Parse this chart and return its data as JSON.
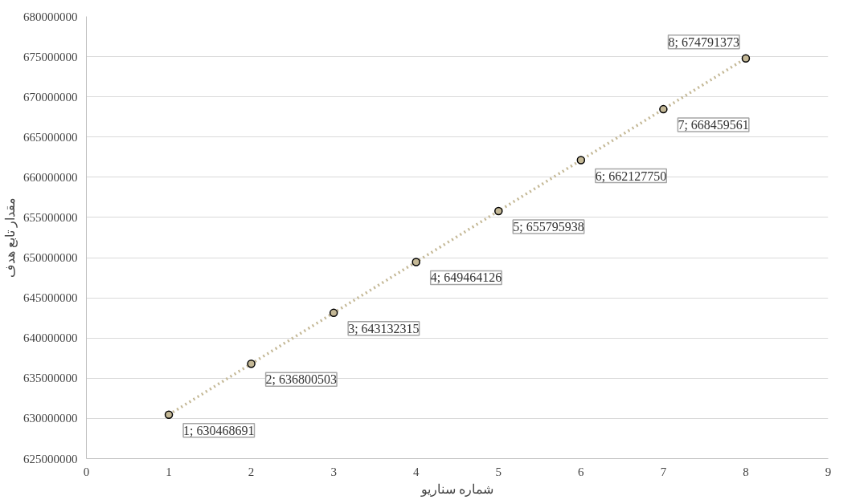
{
  "chart_data": {
    "type": "line",
    "xlabel": "شماره سناریو",
    "ylabel": "مقدار تابع هدف",
    "x": [
      1,
      2,
      3,
      4,
      5,
      6,
      7,
      8
    ],
    "series": [
      {
        "color": "#c4b896",
        "values": [
          630468691,
          636800503,
          643132315,
          649464126,
          655795938,
          662127750,
          668459561,
          674791373
        ],
        "value_labels": [
          "1; 630468691",
          "2; 636800503",
          "3; 643132315",
          "4; 649464126",
          "5; 655795938",
          "6; 662127750",
          "7; 668459561",
          "8; 674791373"
        ]
      }
    ],
    "xlim": [
      0,
      9
    ],
    "xticks": [
      0,
      1,
      2,
      3,
      4,
      5,
      6,
      7,
      8,
      9
    ],
    "ylim": [
      625000000,
      680000000
    ],
    "yticks": [
      625000000,
      630000000,
      635000000,
      640000000,
      645000000,
      650000000,
      655000000,
      660000000,
      665000000,
      670000000,
      675000000,
      680000000
    ],
    "grid": "y",
    "marker": "circle",
    "line_style": "dotted"
  }
}
